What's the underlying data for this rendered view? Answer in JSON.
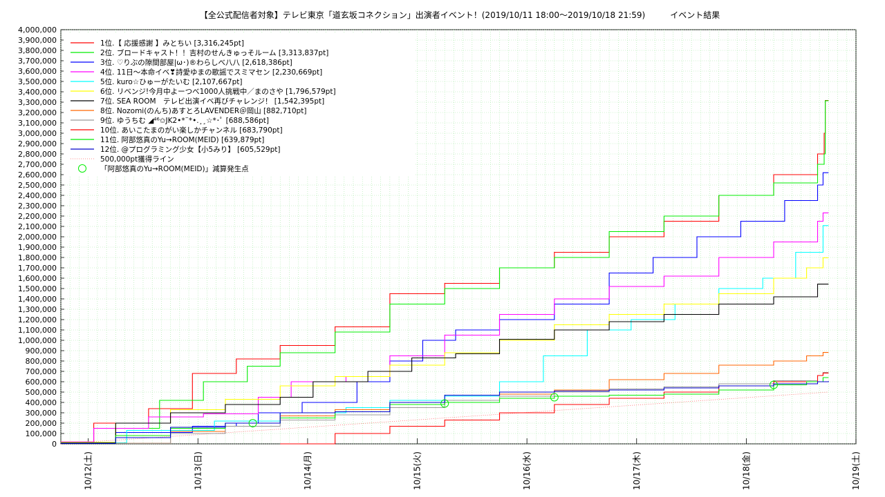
{
  "chart_data": {
    "type": "line",
    "title": "【全公式配信者対象】テレビ東京「道玄坂コネクション」出演者イベント！(2019/10/11 18:00〜2019/10/18 21:59)　　　イベント結果",
    "xlabel": "",
    "ylabel": "",
    "x_range_days": [
      0,
      7.0
    ],
    "ylim": [
      0,
      4000000
    ],
    "y_tick_step": 100000,
    "grid": true,
    "legend_position": "top-left",
    "x_ticks": [
      {
        "label": "10/12(土)",
        "day": 0.25
      },
      {
        "label": "10/13(日)",
        "day": 1.25
      },
      {
        "label": "10/14(月)",
        "day": 2.25
      },
      {
        "label": "10/15(火)",
        "day": 3.25
      },
      {
        "label": "10/16(水)",
        "day": 4.25
      },
      {
        "label": "10/17(木)",
        "day": 5.25
      },
      {
        "label": "10/18(金)",
        "day": 6.25
      },
      {
        "label": "10/19(土)",
        "day": 7.25
      }
    ],
    "series": [
      {
        "name": "1位.【 応援感謝 】みとちい [3,316,245pt]",
        "color": "#ff0000",
        "points": [
          [
            0,
            20000
          ],
          [
            0.3,
            200000
          ],
          [
            0.8,
            340000
          ],
          [
            1.2,
            680000
          ],
          [
            1.6,
            820000
          ],
          [
            2.0,
            950000
          ],
          [
            2.5,
            1130000
          ],
          [
            3.0,
            1450000
          ],
          [
            3.5,
            1550000
          ],
          [
            4.0,
            1700000
          ],
          [
            4.5,
            1850000
          ],
          [
            5.0,
            2000000
          ],
          [
            5.5,
            2150000
          ],
          [
            6.0,
            2400000
          ],
          [
            6.5,
            2600000
          ],
          [
            6.9,
            2800000
          ],
          [
            6.96,
            3000000
          ],
          [
            6.97,
            3316245
          ],
          [
            7.0,
            3316245
          ]
        ]
      },
      {
        "name": "2位. ブロードキャスト！！吉村のせんきゅっそルーム [3,313,837pt]",
        "color": "#00ee00",
        "points": [
          [
            0,
            10000
          ],
          [
            0.5,
            150000
          ],
          [
            0.9,
            420000
          ],
          [
            1.3,
            600000
          ],
          [
            1.7,
            750000
          ],
          [
            2.0,
            880000
          ],
          [
            2.5,
            1080000
          ],
          [
            3.0,
            1350000
          ],
          [
            3.5,
            1500000
          ],
          [
            4.0,
            1700000
          ],
          [
            4.5,
            1800000
          ],
          [
            5.0,
            2050000
          ],
          [
            5.5,
            2200000
          ],
          [
            6.0,
            2400000
          ],
          [
            6.5,
            2520000
          ],
          [
            6.9,
            2700000
          ],
          [
            6.96,
            2800000
          ],
          [
            6.97,
            3313837
          ],
          [
            7.0,
            3313837
          ]
        ]
      },
      {
        "name": "3位. ♡りぶの隙間部屋|ω･)®わらしべ八八 [2,618,386pt]",
        "color": "#0000ff",
        "points": [
          [
            0,
            5000
          ],
          [
            0.5,
            110000
          ],
          [
            1.2,
            170000
          ],
          [
            1.6,
            200000
          ],
          [
            1.8,
            300000
          ],
          [
            2.2,
            400000
          ],
          [
            2.7,
            600000
          ],
          [
            3.0,
            800000
          ],
          [
            3.3,
            1000000
          ],
          [
            3.6,
            1100000
          ],
          [
            4.0,
            1200000
          ],
          [
            4.5,
            1350000
          ],
          [
            5.0,
            1650000
          ],
          [
            5.4,
            1800000
          ],
          [
            5.8,
            2000000
          ],
          [
            6.2,
            2150000
          ],
          [
            6.6,
            2350000
          ],
          [
            6.9,
            2500000
          ],
          [
            6.95,
            2618386
          ],
          [
            7.0,
            2618386
          ]
        ]
      },
      {
        "name": "4位. 11日〜本命イベ❣詩愛ゆまの歌謡でスミマセン [2,230,669pt]",
        "color": "#ff00ff",
        "points": [
          [
            0,
            20000
          ],
          [
            0.3,
            150000
          ],
          [
            0.8,
            260000
          ],
          [
            1.3,
            290000
          ],
          [
            1.8,
            450000
          ],
          [
            2.1,
            600000
          ],
          [
            2.6,
            650000
          ],
          [
            3.0,
            850000
          ],
          [
            3.5,
            1050000
          ],
          [
            4.0,
            1250000
          ],
          [
            4.5,
            1400000
          ],
          [
            5.0,
            1520000
          ],
          [
            5.5,
            1620000
          ],
          [
            6.0,
            1800000
          ],
          [
            6.5,
            1950000
          ],
          [
            6.9,
            2150000
          ],
          [
            6.95,
            2230669
          ],
          [
            7.0,
            2230669
          ]
        ]
      },
      {
        "name": "5位. kuro☆ひゅーがたいむ [2,107,667pt]",
        "color": "#00ffff",
        "points": [
          [
            0,
            10000
          ],
          [
            0.6,
            130000
          ],
          [
            1.4,
            220000
          ],
          [
            2.0,
            300000
          ],
          [
            2.6,
            350000
          ],
          [
            3.0,
            420000
          ],
          [
            3.5,
            460000
          ],
          [
            4.0,
            600000
          ],
          [
            4.4,
            850000
          ],
          [
            4.8,
            1100000
          ],
          [
            5.2,
            1200000
          ],
          [
            5.6,
            1350000
          ],
          [
            6.0,
            1500000
          ],
          [
            6.4,
            1600000
          ],
          [
            6.7,
            1850000
          ],
          [
            6.95,
            2107667
          ],
          [
            7.0,
            2107667
          ]
        ]
      },
      {
        "name": "6位. リベンジ!今月中よーつべ1000人挑戦中／まのさや [1,796,579pt]",
        "color": "#ffff00",
        "points": [
          [
            0,
            15000
          ],
          [
            0.5,
            200000
          ],
          [
            1.0,
            330000
          ],
          [
            1.5,
            430000
          ],
          [
            2.0,
            560000
          ],
          [
            2.5,
            650000
          ],
          [
            3.0,
            760000
          ],
          [
            3.5,
            880000
          ],
          [
            4.0,
            1000000
          ],
          [
            4.5,
            1150000
          ],
          [
            5.0,
            1250000
          ],
          [
            5.5,
            1350000
          ],
          [
            6.0,
            1450000
          ],
          [
            6.5,
            1600000
          ],
          [
            6.8,
            1700000
          ],
          [
            6.95,
            1796579
          ],
          [
            7.0,
            1796579
          ]
        ]
      },
      {
        "name": "7位. SEA ROOM　テレビ出演イベ再びチャレンジ！ [1,542,395pt]",
        "color": "#000000",
        "points": [
          [
            0,
            10000
          ],
          [
            0.5,
            200000
          ],
          [
            1.0,
            300000
          ],
          [
            1.5,
            380000
          ],
          [
            2.0,
            450000
          ],
          [
            2.3,
            600000
          ],
          [
            2.8,
            700000
          ],
          [
            3.2,
            830000
          ],
          [
            3.6,
            870000
          ],
          [
            4.0,
            1010000
          ],
          [
            4.5,
            1100000
          ],
          [
            5.0,
            1180000
          ],
          [
            5.5,
            1250000
          ],
          [
            6.0,
            1350000
          ],
          [
            6.5,
            1420000
          ],
          [
            6.9,
            1542395
          ],
          [
            7.0,
            1542395
          ]
        ]
      },
      {
        "name": "8位. Nozomi(のんち)あすとろLAVENDER＠岡山 [882,710pt]",
        "color": "#ff6600",
        "points": [
          [
            0,
            5000
          ],
          [
            1.0,
            120000
          ],
          [
            1.5,
            200000
          ],
          [
            2.0,
            270000
          ],
          [
            2.5,
            330000
          ],
          [
            3.0,
            380000
          ],
          [
            3.5,
            420000
          ],
          [
            4.0,
            480000
          ],
          [
            4.5,
            520000
          ],
          [
            5.0,
            620000
          ],
          [
            5.5,
            680000
          ],
          [
            6.0,
            760000
          ],
          [
            6.5,
            800000
          ],
          [
            6.8,
            850000
          ],
          [
            6.95,
            882710
          ],
          [
            7.0,
            882710
          ]
        ]
      },
      {
        "name": "9位. ゆうちむ ◢⁴⁶✩JK2•*¨*•.¸¸☆*･ﾟ [688,586pt]",
        "color": "#999999",
        "points": [
          [
            0,
            5000
          ],
          [
            1.0,
            100000
          ],
          [
            1.5,
            170000
          ],
          [
            2.0,
            230000
          ],
          [
            2.5,
            280000
          ],
          [
            3.0,
            350000
          ],
          [
            3.5,
            420000
          ],
          [
            4.0,
            460000
          ],
          [
            4.5,
            500000
          ],
          [
            5.0,
            530000
          ],
          [
            5.5,
            550000
          ],
          [
            6.0,
            580000
          ],
          [
            6.5,
            610000
          ],
          [
            6.9,
            660000
          ],
          [
            6.95,
            688586
          ],
          [
            7.0,
            688586
          ]
        ]
      },
      {
        "name": "10位. あいこたまのがい楽しかチャンネル [683,790pt]",
        "color": "#ff0000",
        "points": [
          [
            2.0,
            0
          ],
          [
            2.5,
            100000
          ],
          [
            3.0,
            170000
          ],
          [
            3.5,
            230000
          ],
          [
            4.0,
            300000
          ],
          [
            4.5,
            380000
          ],
          [
            5.0,
            440000
          ],
          [
            5.5,
            500000
          ],
          [
            6.0,
            560000
          ],
          [
            6.5,
            600000
          ],
          [
            6.9,
            660000
          ],
          [
            6.95,
            683790
          ],
          [
            7.0,
            683790
          ]
        ]
      },
      {
        "name": "11位. 阿部悠真のYu→ROOM(MEID) [639,879pt]",
        "color": "#00ee00",
        "points": [
          [
            0,
            5000
          ],
          [
            0.5,
            80000
          ],
          [
            1.0,
            150000
          ],
          [
            1.5,
            200000
          ],
          [
            2.0,
            250000
          ],
          [
            2.5,
            310000
          ],
          [
            3.0,
            380000
          ],
          [
            3.5,
            400000
          ],
          [
            4.0,
            440000
          ],
          [
            4.5,
            460000
          ],
          [
            5.0,
            470000
          ],
          [
            5.5,
            480000
          ],
          [
            6.0,
            520000
          ],
          [
            6.5,
            570000
          ],
          [
            6.8,
            600000
          ],
          [
            6.95,
            639879
          ],
          [
            7.0,
            639879
          ]
        ]
      },
      {
        "name": "12位. @プログラミング少女【小5みり】 [605,529pt]",
        "color": "#0000cc",
        "points": [
          [
            0,
            5000
          ],
          [
            0.5,
            60000
          ],
          [
            1.0,
            160000
          ],
          [
            1.5,
            200000
          ],
          [
            2.0,
            300000
          ],
          [
            2.5,
            310000
          ],
          [
            3.0,
            400000
          ],
          [
            3.5,
            470000
          ],
          [
            4.0,
            500000
          ],
          [
            4.5,
            510000
          ],
          [
            5.0,
            520000
          ],
          [
            5.5,
            540000
          ],
          [
            6.0,
            560000
          ],
          [
            6.5,
            580000
          ],
          [
            6.9,
            600000
          ],
          [
            7.0,
            605529
          ]
        ]
      }
    ],
    "threshold_line": {
      "name": "500,000pt獲得ライン",
      "color": "#ff6666",
      "points": [
        [
          0,
          0
        ],
        [
          7.0,
          500000
        ]
      ]
    },
    "markers": {
      "name": "「阿部悠真のYu→ROOM(MEID)」減算発生点",
      "color": "#00ee00",
      "points": [
        [
          1.75,
          200000
        ],
        [
          3.5,
          390000
        ],
        [
          4.5,
          450000
        ],
        [
          6.5,
          570000
        ]
      ]
    }
  }
}
